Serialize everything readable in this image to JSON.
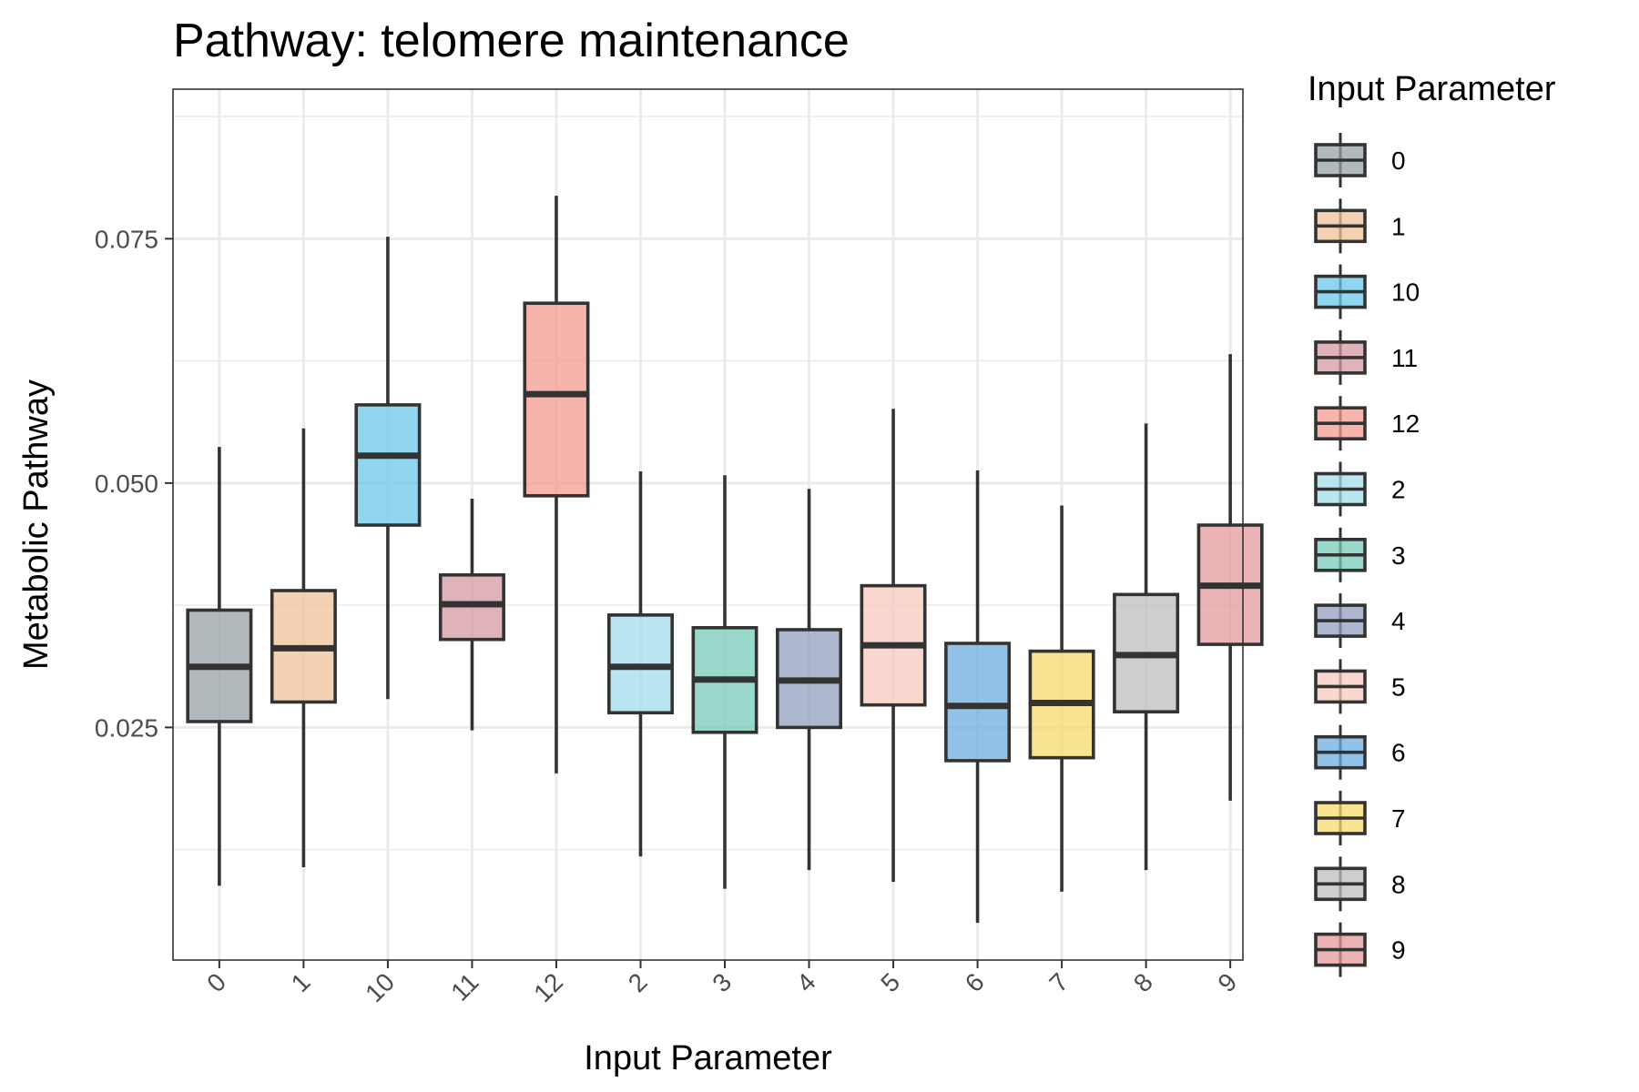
{
  "chart_data": {
    "type": "boxplot",
    "title": "Pathway: telomere maintenance",
    "xlabel": "Input Parameter",
    "ylabel": "Metabolic Pathway",
    "ylim": [
      0.0012,
      0.0903
    ],
    "yticks": [
      0.025,
      0.05,
      0.075
    ],
    "ytick_labels": [
      "0.025",
      "0.050",
      "0.075"
    ],
    "grid": true,
    "legend": {
      "title": "Input Parameter",
      "position": "right"
    },
    "categories": [
      "0",
      "1",
      "10",
      "11",
      "12",
      "2",
      "3",
      "4",
      "5",
      "6",
      "7",
      "8",
      "9"
    ],
    "boxes": [
      {
        "name": "0",
        "whisker_low": 0.0088,
        "q1": 0.0256,
        "median": 0.0312,
        "q3": 0.037,
        "whisker_high": 0.0537,
        "color": "#95a3a6"
      },
      {
        "name": "1",
        "whisker_low": 0.0107,
        "q1": 0.0276,
        "median": 0.0331,
        "q3": 0.039,
        "whisker_high": 0.0556,
        "color": "#f0c298"
      },
      {
        "name": "10",
        "whisker_low": 0.0279,
        "q1": 0.0457,
        "median": 0.0528,
        "q3": 0.058,
        "whisker_high": 0.0752,
        "color": "#6cc8ea"
      },
      {
        "name": "11",
        "whisker_low": 0.0247,
        "q1": 0.034,
        "median": 0.0376,
        "q3": 0.0406,
        "whisker_high": 0.0484,
        "color": "#d49aa2"
      },
      {
        "name": "12",
        "whisker_low": 0.0203,
        "q1": 0.0487,
        "median": 0.0591,
        "q3": 0.0684,
        "whisker_high": 0.0794,
        "color": "#f39b92"
      },
      {
        "name": "2",
        "whisker_low": 0.0118,
        "q1": 0.0265,
        "median": 0.0312,
        "q3": 0.0365,
        "whisker_high": 0.0512,
        "color": "#a3dded"
      },
      {
        "name": "3",
        "whisker_low": 0.0085,
        "q1": 0.0245,
        "median": 0.0299,
        "q3": 0.0352,
        "whisker_high": 0.0508,
        "color": "#78cbbb"
      },
      {
        "name": "4",
        "whisker_low": 0.0104,
        "q1": 0.025,
        "median": 0.0298,
        "q3": 0.035,
        "whisker_high": 0.0494,
        "color": "#929fc0"
      },
      {
        "name": "5",
        "whisker_low": 0.0092,
        "q1": 0.0273,
        "median": 0.0334,
        "q3": 0.0395,
        "whisker_high": 0.0576,
        "color": "#f8c9bd"
      },
      {
        "name": "6",
        "whisker_low": 0.005,
        "q1": 0.0216,
        "median": 0.0272,
        "q3": 0.0336,
        "whisker_high": 0.0513,
        "color": "#6caee0"
      },
      {
        "name": "7",
        "whisker_low": 0.0082,
        "q1": 0.0219,
        "median": 0.0275,
        "q3": 0.0328,
        "whisker_high": 0.0477,
        "color": "#f6d96a"
      },
      {
        "name": "8",
        "whisker_low": 0.0104,
        "q1": 0.0266,
        "median": 0.0324,
        "q3": 0.0386,
        "whisker_high": 0.0561,
        "color": "#bdbdbd"
      },
      {
        "name": "9",
        "whisker_low": 0.0175,
        "q1": 0.0335,
        "median": 0.0395,
        "q3": 0.0457,
        "whisker_high": 0.0632,
        "color": "#e49a9c"
      }
    ]
  }
}
